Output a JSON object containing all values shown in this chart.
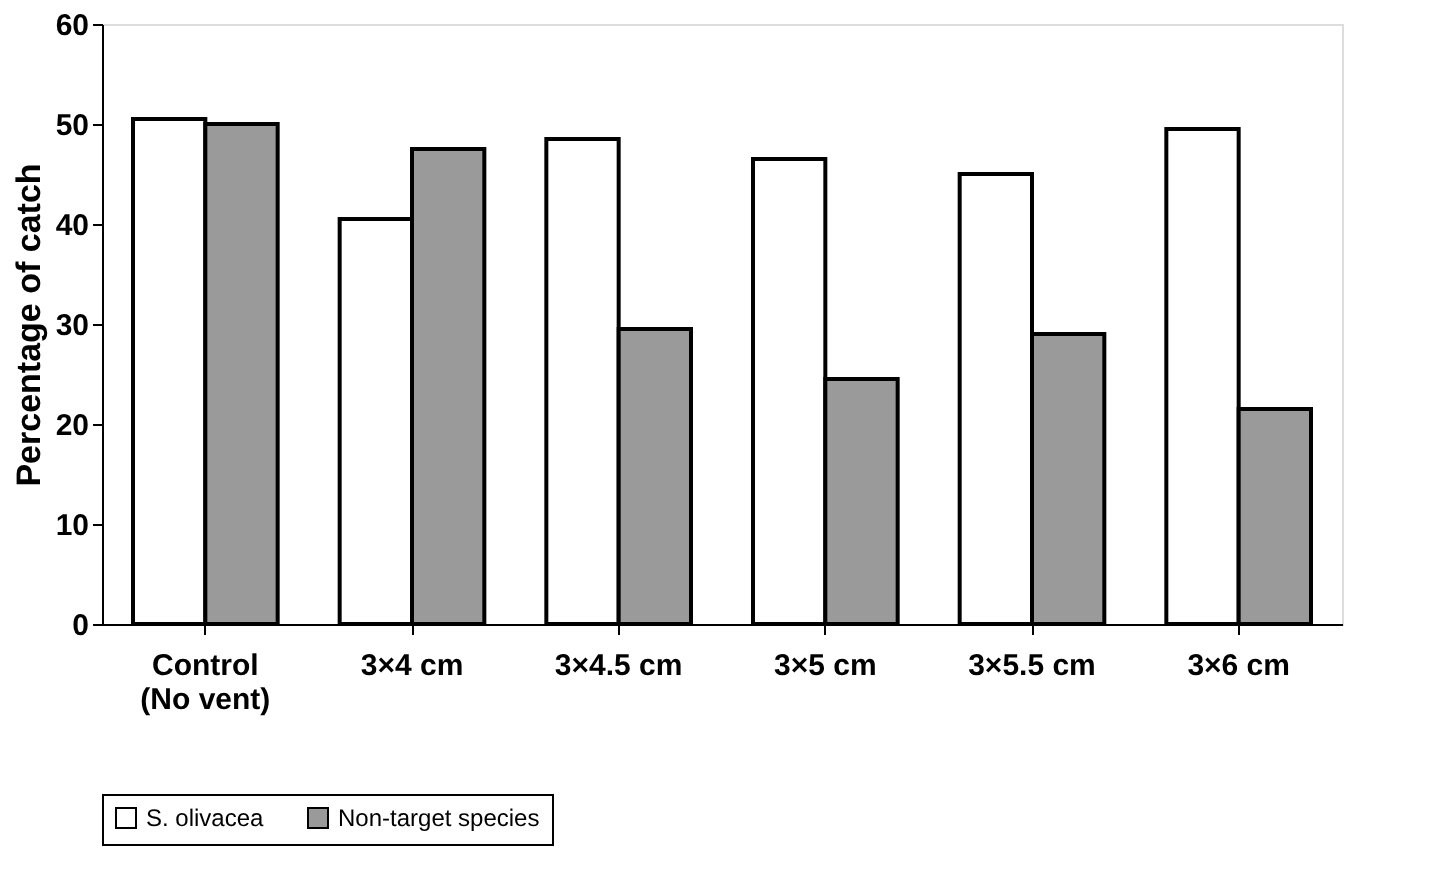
{
  "chart_data": {
    "type": "bar",
    "ylabel": "Percentage of catch",
    "categories": [
      "Control\n(No vent)",
      "3×4 cm",
      "3×4.5 cm",
      "3×5 cm",
      "3×5.5 cm",
      "3×6 cm"
    ],
    "series": [
      {
        "name": "S. olivacea",
        "color": "#ffffff",
        "values": [
          50.5,
          40.5,
          48.5,
          46.5,
          45,
          49.5
        ]
      },
      {
        "name": "Non-target species",
        "color": "#9a9a9a",
        "values": [
          50,
          47.5,
          29.5,
          24.5,
          29,
          21.5
        ]
      }
    ],
    "ylim": [
      0,
      60
    ],
    "yticks": [
      0,
      10,
      20,
      30,
      40,
      50,
      60
    ],
    "grid": false,
    "legend": "bottom"
  }
}
